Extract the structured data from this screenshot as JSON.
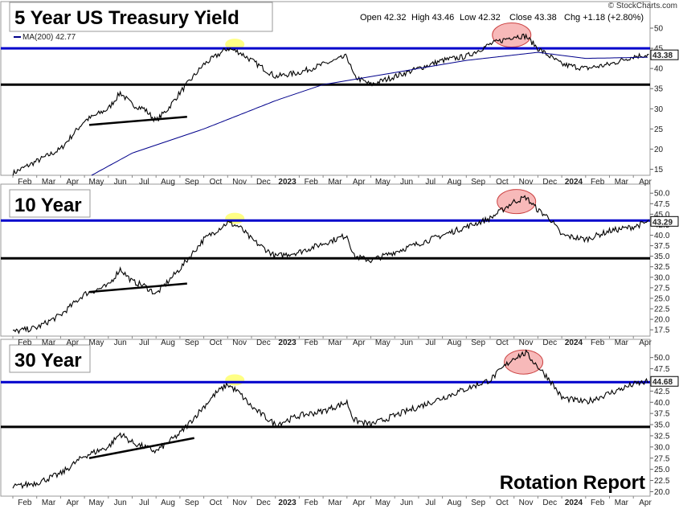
{
  "brand": "© StockCharts.com",
  "footer": "Rotation Report",
  "header": {
    "open": "Open 42.32",
    "high": "High 43.46",
    "low": "Low 42.32",
    "close": "Close 43.38",
    "chg": "Chg +1.18 (+2.80%)"
  },
  "ma_label": "MA(200) 42.77",
  "colors": {
    "price": "#000000",
    "ma": "#00008b",
    "resistance": "#0000cc",
    "support": "#000000",
    "ellipse_red": "#f08080",
    "ellipse_yellow": "#ffff66"
  },
  "x_months": [
    "Feb",
    "Mar",
    "Apr",
    "May",
    "Jun",
    "Jul",
    "Aug",
    "Sep",
    "Oct",
    "Nov",
    "Dec",
    "2023",
    "Feb",
    "Mar",
    "Apr",
    "May",
    "Jun",
    "Jul",
    "Aug",
    "Sep",
    "Oct",
    "Nov",
    "Dec",
    "2024",
    "Feb",
    "Mar",
    "Apr"
  ],
  "chart_data": [
    {
      "type": "line",
      "title": "5 Year US Treasury Yield",
      "ylim": [
        13.5,
        51
      ],
      "yticks": [
        "15",
        "20",
        "25",
        "30",
        "35",
        "40",
        "45",
        "50"
      ],
      "ytick_values": [
        15,
        20,
        25,
        30,
        35,
        40,
        45,
        50
      ],
      "last_label": "43.38",
      "last_value": 43.38,
      "resistance": 45.0,
      "support": 36.0,
      "series": [
        {
          "x": [
            0,
            1,
            2,
            3,
            4,
            4.5,
            5,
            5.5,
            6,
            6.5,
            7,
            8,
            8.5,
            9,
            9.5,
            10,
            11,
            12,
            13,
            14,
            14.3,
            15,
            16,
            17,
            18,
            19,
            20,
            21,
            21.5,
            22,
            22.5,
            23,
            24,
            25,
            26,
            26.7
          ],
          "values": [
            14,
            17,
            20,
            27,
            30,
            34,
            31,
            30,
            27,
            30,
            34,
            41,
            43,
            45,
            44,
            42,
            38,
            39,
            41,
            43,
            38,
            36,
            38,
            40,
            42,
            43,
            46,
            48,
            48,
            45,
            43,
            41,
            40,
            41,
            43,
            43.4
          ]
        },
        {
          "x": [
            3.3,
            5,
            8,
            11,
            13,
            16,
            19,
            22,
            24,
            26.7
          ],
          "values": [
            13.5,
            19,
            25,
            32,
            36,
            39,
            42,
            44,
            42.5,
            42.8
          ]
        }
      ],
      "trendline": {
        "x": [
          3.2,
          7.3
        ],
        "values": [
          26,
          28
        ]
      },
      "ellipses": [
        {
          "x": 20.9,
          "y": 48.3,
          "type": "red"
        },
        {
          "x": 9.3,
          "y": 46,
          "type": "yellow"
        }
      ]
    },
    {
      "type": "line",
      "title": "10 Year",
      "ylim": [
        16,
        51
      ],
      "yticks": [
        "17.5",
        "20.0",
        "22.5",
        "25.0",
        "27.5",
        "30.0",
        "32.5",
        "35.0",
        "37.5",
        "40.0",
        "42.5",
        "45.0",
        "47.5",
        "50.0"
      ],
      "ytick_values": [
        17.5,
        20,
        22.5,
        25,
        27.5,
        30,
        32.5,
        35,
        37.5,
        40,
        42.5,
        45,
        47.5,
        50
      ],
      "last_label": "43.29",
      "last_value": 43.29,
      "resistance": 43.5,
      "support": 34.5,
      "series": [
        {
          "x": [
            0,
            1,
            2,
            3,
            4,
            4.5,
            5,
            5.5,
            6,
            6.5,
            7,
            8,
            8.5,
            9,
            9.5,
            10,
            11,
            12,
            13,
            14,
            14.3,
            15,
            16,
            17,
            18,
            19,
            20,
            21,
            21.5,
            22,
            22.5,
            23,
            24,
            25,
            26,
            26.7
          ],
          "values": [
            17,
            18,
            21,
            26,
            28,
            32,
            29,
            28,
            26,
            29,
            32,
            39,
            41,
            43,
            42,
            39,
            35,
            36,
            38,
            40,
            35,
            34,
            36,
            38,
            40,
            42,
            44,
            48,
            49,
            46,
            44,
            40,
            39,
            41,
            42,
            43.3
          ]
        }
      ],
      "trendline": {
        "x": [
          3.2,
          7.3
        ],
        "values": [
          26.5,
          28.5
        ]
      },
      "ellipses": [
        {
          "x": 21.1,
          "y": 48,
          "type": "red"
        },
        {
          "x": 9.3,
          "y": 44,
          "type": "yellow"
        }
      ]
    },
    {
      "type": "line",
      "title": "30 Year",
      "ylim": [
        19,
        53
      ],
      "yticks": [
        "20.0",
        "22.5",
        "25.0",
        "27.5",
        "30.0",
        "32.5",
        "35.0",
        "37.5",
        "40.0",
        "42.5",
        "45.0",
        "47.5",
        "50.0"
      ],
      "ytick_values": [
        20,
        22.5,
        25,
        27.5,
        30,
        32.5,
        35,
        37.5,
        40,
        42.5,
        45,
        47.5,
        50
      ],
      "last_label": "44.68",
      "last_value": 44.68,
      "resistance": 44.5,
      "support": 34.5,
      "series": [
        {
          "x": [
            0,
            1,
            2,
            3,
            4,
            4.5,
            5,
            5.5,
            6,
            6.5,
            7,
            8,
            8.5,
            9,
            9.5,
            10,
            11,
            12,
            13,
            14,
            14.3,
            15,
            16,
            17,
            18,
            19,
            20,
            21,
            21.5,
            22,
            22.5,
            23,
            24,
            25,
            26,
            26.7
          ],
          "values": [
            21,
            22,
            24,
            28,
            30,
            33,
            31,
            30,
            29,
            31,
            33,
            39,
            42,
            44,
            42,
            39,
            35,
            37,
            38,
            40,
            36,
            35,
            37,
            39,
            41,
            43,
            45,
            50,
            51,
            48,
            45,
            41,
            40,
            42,
            44,
            44.7
          ]
        }
      ],
      "trendline": {
        "x": [
          3.2,
          7.6
        ],
        "values": [
          27.5,
          32
        ]
      },
      "ellipses": [
        {
          "x": 21.4,
          "y": 49,
          "type": "red"
        },
        {
          "x": 9.3,
          "y": 45,
          "type": "yellow"
        }
      ]
    }
  ]
}
